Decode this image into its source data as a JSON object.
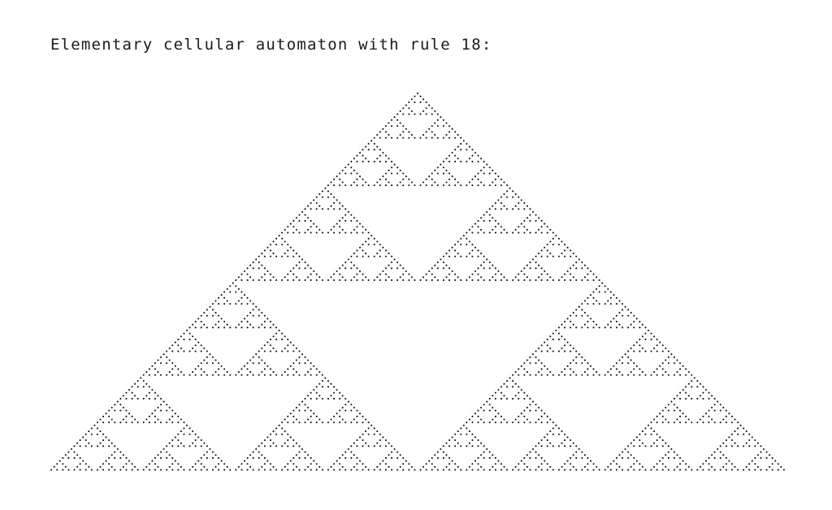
{
  "caption": "Elementary cellular automaton with rule 18:",
  "automaton": {
    "rule": 18,
    "generations": 128,
    "initial_state": "single-cell",
    "cell_shape": "dot",
    "cell_color": "#111111",
    "background_color": "#ffffff"
  }
}
